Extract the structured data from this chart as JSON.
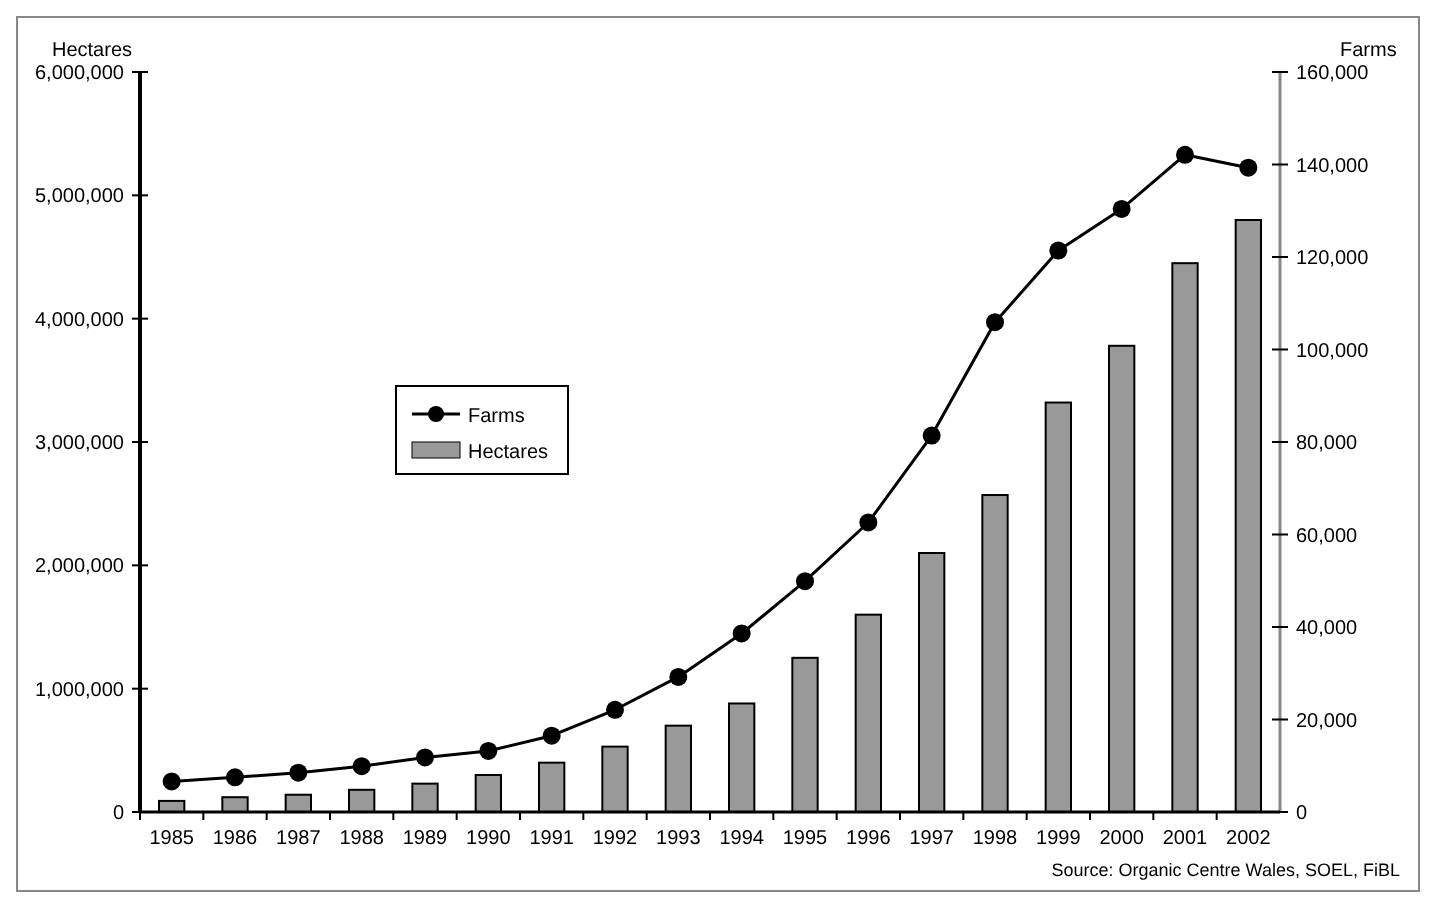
{
  "chart_data": {
    "type": "bar",
    "ylabel": "Hectares",
    "y2label": "Farms",
    "categories": [
      "1985",
      "1986",
      "1987",
      "1988",
      "1989",
      "1990",
      "1991",
      "1992",
      "1993",
      "1994",
      "1995",
      "1996",
      "1997",
      "1998",
      "1999",
      "2000",
      "2001",
      "2002"
    ],
    "series": [
      {
        "name": "Farms",
        "type": "line",
        "axis": "y2",
        "color": "#000000",
        "marker": "circle",
        "values": [
          6600,
          7500,
          8500,
          9900,
          11800,
          13200,
          16500,
          22100,
          29200,
          38600,
          49900,
          62600,
          81400,
          105900,
          121400,
          130400,
          142100,
          139300
        ]
      },
      {
        "name": "Hectares",
        "color": "#999999",
        "values": [
          90000,
          120000,
          140000,
          180000,
          230000,
          300000,
          400000,
          530000,
          700000,
          880000,
          1250000,
          1600000,
          2100000,
          2570000,
          3320000,
          3780000,
          4450000,
          4800000
        ]
      }
    ],
    "ylim": [
      0,
      6000000
    ],
    "yticks": [
      {
        "value": 0,
        "label": "0"
      },
      {
        "value": 1000000,
        "label": "1,000,000"
      },
      {
        "value": 2000000,
        "label": "2,000,000"
      },
      {
        "value": 3000000,
        "label": "3,000,000"
      },
      {
        "value": 4000000,
        "label": "4,000,000"
      },
      {
        "value": 5000000,
        "label": "5,000,000"
      },
      {
        "value": 6000000,
        "label": "6,000,000"
      }
    ],
    "y2lim": [
      0,
      160000
    ],
    "y2ticks": [
      {
        "value": 0,
        "label": "0"
      },
      {
        "value": 20000,
        "label": "20,000"
      },
      {
        "value": 40000,
        "label": "40,000"
      },
      {
        "value": 60000,
        "label": "60,000"
      },
      {
        "value": 80000,
        "label": "80,000"
      },
      {
        "value": 100000,
        "label": "100,000"
      },
      {
        "value": 120000,
        "label": "120,000"
      },
      {
        "value": 140000,
        "label": "140,000"
      },
      {
        "value": 160000,
        "label": "160,000"
      }
    ],
    "legend": "left",
    "grid": false,
    "annotations": [
      "Source: Organic Centre Wales, SOEL, FiBL"
    ]
  }
}
